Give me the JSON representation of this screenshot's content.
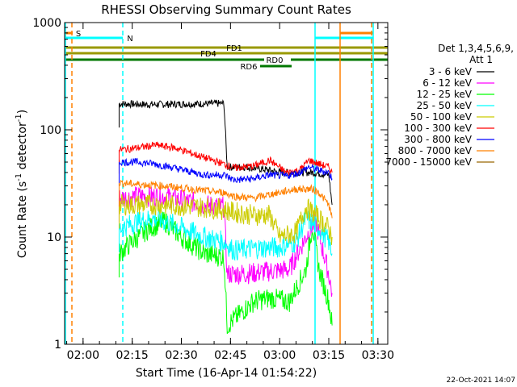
{
  "chart_data": {
    "type": "line",
    "title": "RHESSI Observing Summary Count Rates",
    "xlabel": "Start Time (16-Apr-14 01:54:22)",
    "ylabel_main": "Count Rate (s",
    "ylabel_sup": "-1",
    "ylabel_mid": " detector",
    "ylabel_sup2": "-1",
    "ylabel_end": ")",
    "y_scale": "log",
    "ylim": [
      1,
      1000
    ],
    "xlim": [
      "01:54:22",
      "03:33:00"
    ],
    "x_ticks": [
      "02:00",
      "02:15",
      "02:30",
      "02:45",
      "03:00",
      "03:15",
      "03:30"
    ],
    "y_ticks": [
      "1",
      "10",
      "100",
      "1000"
    ],
    "legend_header": [
      "Det 1,3,4,5,6,9,",
      "Att 1"
    ],
    "legend_position": "right",
    "timestamp": "22-Oct-2021 14:07",
    "series": [
      {
        "name": "3 - 6 keV",
        "color": "#000000",
        "x": [
          "02:11",
          "02:20",
          "02:30",
          "02:43",
          "02:44",
          "02:50",
          "02:57",
          "03:00",
          "03:05",
          "03:10",
          "03:15",
          "03:16"
        ],
        "values": [
          175,
          172,
          174,
          176,
          45,
          45,
          42,
          40,
          40,
          40,
          38,
          20
        ]
      },
      {
        "name": "6 - 12 keV",
        "color": "#ff00ff",
        "x": [
          "02:11",
          "02:17",
          "02:25",
          "02:37",
          "02:43",
          "02:44",
          "02:52",
          "02:57",
          "03:03",
          "03:08",
          "03:11",
          "03:15",
          "03:16"
        ],
        "values": [
          23,
          24,
          24,
          20,
          19,
          4.5,
          4.6,
          4.8,
          5.0,
          10,
          14,
          4.5,
          3
        ]
      },
      {
        "name": "12 - 25 keV",
        "color": "#00ff00",
        "x": [
          "02:11",
          "02:15",
          "02:20",
          "02:25",
          "02:30",
          "02:37",
          "02:43",
          "02:44",
          "02:52",
          "02:57",
          "03:03",
          "03:08",
          "03:10",
          "03:12",
          "03:15",
          "03:16"
        ],
        "values": [
          7,
          9,
          12,
          14,
          10,
          7,
          6.5,
          1.5,
          2.5,
          2.7,
          2.5,
          5,
          13,
          5,
          2.5,
          1.5
        ]
      },
      {
        "name": "25 - 50 keV",
        "color": "#00ffff",
        "x": [
          "02:11",
          "02:17",
          "02:22",
          "02:28",
          "02:37",
          "02:43",
          "02:46",
          "02:52",
          "02:57",
          "03:00",
          "03:05",
          "03:08",
          "03:12",
          "03:15",
          "03:16"
        ],
        "values": [
          12,
          14,
          15,
          13,
          10,
          9,
          7.5,
          7.8,
          8,
          8,
          9,
          15,
          12,
          9,
          7
        ]
      },
      {
        "name": "50 - 100 keV",
        "color": "#cccc00",
        "x": [
          "02:11",
          "02:17",
          "02:25",
          "02:37",
          "02:43",
          "02:46",
          "02:52",
          "02:57",
          "03:00",
          "03:05",
          "03:08",
          "03:12",
          "03:15",
          "03:16"
        ],
        "values": [
          20,
          20,
          20,
          19,
          18,
          17,
          16,
          16,
          10,
          11,
          19,
          15,
          12,
          10
        ]
      },
      {
        "name": "100 - 300 keV",
        "color": "#ff0000",
        "x": [
          "02:11",
          "02:17",
          "02:22",
          "02:28",
          "02:37",
          "02:43",
          "02:46",
          "02:52",
          "02:57",
          "03:02",
          "03:06",
          "03:09",
          "03:12",
          "03:15",
          "03:16"
        ],
        "values": [
          65,
          68,
          72,
          68,
          55,
          48,
          44,
          46,
          52,
          40,
          42,
          52,
          48,
          45,
          40
        ]
      },
      {
        "name": "300 - 800 keV",
        "color": "#0000ff",
        "x": [
          "02:11",
          "02:17",
          "02:22",
          "02:28",
          "02:37",
          "02:43",
          "02:46",
          "02:52",
          "02:57",
          "03:02",
          "03:06",
          "03:09",
          "03:12",
          "03:15",
          "03:16"
        ],
        "values": [
          50,
          50,
          48,
          44,
          38,
          38,
          34,
          35,
          38,
          37,
          40,
          45,
          42,
          40,
          35
        ]
      },
      {
        "name": "800 - 7000 keV",
        "color": "#ff8000",
        "x": [
          "02:11",
          "02:17",
          "02:25",
          "02:37",
          "02:43",
          "02:46",
          "02:52",
          "02:57",
          "03:00",
          "03:05",
          "03:10",
          "03:12",
          "03:15",
          "03:16"
        ],
        "values": [
          32,
          31,
          30,
          27,
          26,
          24,
          23,
          25,
          26,
          28,
          28,
          26,
          20,
          15
        ]
      },
      {
        "name": "7000 - 15000 keV",
        "color": "#996600",
        "x": [],
        "values": []
      }
    ],
    "flags": [
      {
        "label": "S",
        "color": "#ff8000",
        "start": "01:55",
        "end": "01:57"
      },
      {
        "label": "N",
        "color": "#00ffff",
        "start": "01:54:22",
        "end": "02:14"
      },
      {
        "label": "FD1",
        "color": "#999900",
        "start": "01:54:22",
        "end": "03:33"
      },
      {
        "label": "FD4",
        "color": "#999900",
        "start": "01:54:22",
        "end": "03:33"
      },
      {
        "label": "RD0",
        "color": "#007700",
        "start": "01:54:22",
        "end": "03:33"
      },
      {
        "label": "RD6",
        "color": "#007700",
        "start": "02:52",
        "end": "03:07"
      },
      {
        "label": "",
        "color": "#00ffff",
        "start": "03:12",
        "end": "03:33"
      },
      {
        "label": "",
        "color": "#ff8000",
        "start": "03:20",
        "end": "03:33"
      }
    ],
    "vertical_markers": [
      {
        "time": "01:55",
        "color": "#00ffff",
        "style": "solid"
      },
      {
        "time": "01:56",
        "color": "#ff8000",
        "style": "dashed"
      },
      {
        "time": "02:14",
        "color": "#00ffff",
        "style": "dashed"
      },
      {
        "time": "03:12",
        "color": "#00ffff",
        "style": "solid"
      },
      {
        "time": "03:20",
        "color": "#ff8000",
        "style": "solid"
      },
      {
        "time": "03:30",
        "color": "#ff8000",
        "style": "dashed"
      },
      {
        "time": "03:31",
        "color": "#00ffff",
        "style": "solid"
      }
    ]
  }
}
